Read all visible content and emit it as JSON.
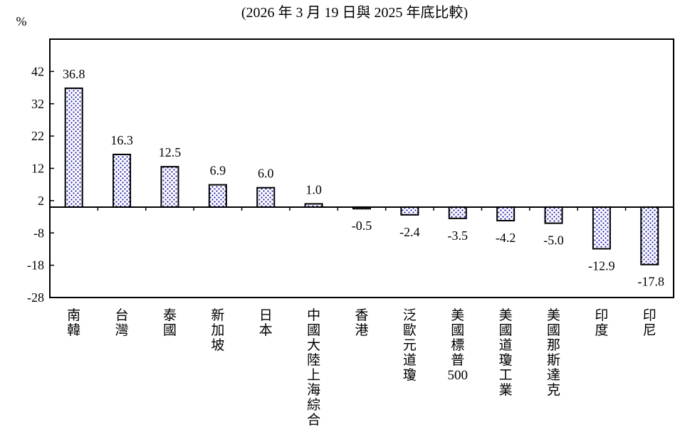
{
  "chart_data": {
    "type": "bar",
    "subtitle": "(2026 年 3 月 19 日與 2025 年底比較)",
    "ylabel": "%",
    "ylim": [
      -28,
      52
    ],
    "yticks": [
      42,
      32,
      22,
      12,
      2,
      -8,
      -18,
      -28
    ],
    "baseline": 0,
    "grid": false,
    "categories": [
      "南韓",
      "台灣",
      "泰國",
      "新加坡",
      "日本",
      "中國大陸上海綜合",
      "香港",
      "泛歐元道瓊",
      "美國標普500",
      "美國道瓊工業",
      "美國那斯達克",
      "印度",
      "印尼"
    ],
    "values": [
      36.8,
      16.3,
      12.5,
      6.9,
      6.0,
      1.0,
      -0.5,
      -2.4,
      -3.5,
      -4.2,
      -5.0,
      -12.9,
      -17.8
    ],
    "value_labels": [
      "36.8",
      "16.3",
      "12.5",
      "6.9",
      "6.0",
      "1.0",
      "-0.5",
      "-2.4",
      "-3.5",
      "-4.2",
      "-5.0",
      "-12.9",
      "-17.8"
    ],
    "bar_fill": "#ffffff",
    "bar_dot_color": "#1a1aa6",
    "axis_color": "#000000"
  }
}
